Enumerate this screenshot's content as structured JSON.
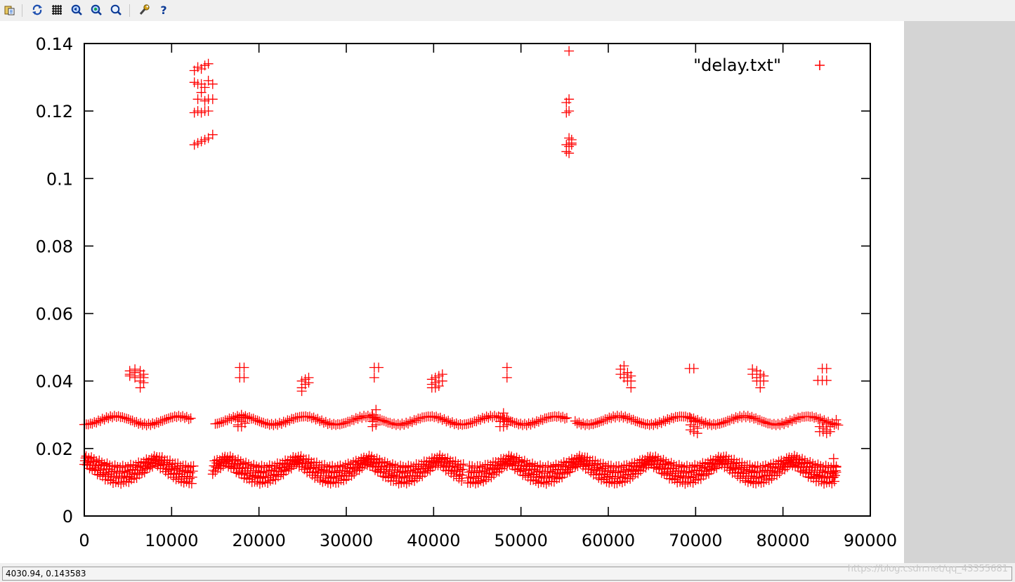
{
  "toolbar": {
    "buttons": [
      {
        "icon": "copy-to-clipboard-icon"
      },
      {
        "icon": "replot-icon"
      },
      {
        "icon": "grid-icon"
      },
      {
        "icon": "zoom-previous-icon"
      },
      {
        "icon": "zoom-next-icon"
      },
      {
        "icon": "unzoom-icon"
      },
      {
        "icon": "settings-wrench-icon"
      },
      {
        "icon": "help-icon"
      }
    ]
  },
  "status": {
    "readout": "4030.94,  0.143583",
    "watermark": "https://blog.csdn.net/qq_43355681"
  },
  "colors": {
    "series": "#ff0000",
    "axis": "#000000",
    "panel": "#d4d4d4"
  },
  "chart_data": {
    "type": "scatter",
    "title": "",
    "xlabel": "",
    "ylabel": "",
    "xlim": [
      0,
      90000
    ],
    "ylim": [
      0,
      0.14
    ],
    "xticks": [
      0,
      10000,
      20000,
      30000,
      40000,
      50000,
      60000,
      70000,
      80000,
      90000
    ],
    "xtick_labels": [
      "0",
      "10000",
      "20000",
      "30000",
      "40000",
      "50000",
      "60000",
      "70000",
      "80000",
      "90000"
    ],
    "yticks": [
      0,
      0.02,
      0.04,
      0.06,
      0.08,
      0.1,
      0.12,
      0.14
    ],
    "ytick_labels": [
      "0",
      "0.02",
      "0.04",
      "0.06",
      "0.08",
      "0.1",
      "0.12",
      "0.14"
    ],
    "grid": false,
    "legend_position": "top-right",
    "marker": "+",
    "series": [
      {
        "name": "\"delay.txt\"",
        "band_028": {
          "x_segments": [
            [
              0,
              12300
            ],
            [
              15000,
              55400
            ],
            [
              56200,
              86400
            ]
          ],
          "center": 0.0283,
          "amplitude": 0.0012,
          "period": 7200,
          "step": 230
        },
        "band_012": {
          "segments": [
            [
              0,
              12300
            ],
            [
              14700,
              43200
            ],
            [
              43900,
              86100
            ]
          ],
          "period": 8100,
          "step": 300,
          "lines": 4
        },
        "clusters_004": [
          {
            "x": 5200,
            "y": [
              0.042,
              0.043,
              0.0415
            ]
          },
          {
            "x": 5800,
            "y": [
              0.0425,
              0.041,
              0.0435
            ]
          },
          {
            "x": 6400,
            "y": [
              0.04,
              0.0415,
              0.043,
              0.038
            ]
          },
          {
            "x": 6800,
            "y": [
              0.041,
              0.0395,
              0.042
            ]
          },
          {
            "x": 17800,
            "y": [
              0.044,
              0.041
            ]
          },
          {
            "x": 18300,
            "y": [
              0.044,
              0.041
            ]
          },
          {
            "x": 24900,
            "y": [
              0.04,
              0.038,
              0.037
            ]
          },
          {
            "x": 25300,
            "y": [
              0.0405,
              0.039
            ]
          },
          {
            "x": 25700,
            "y": [
              0.041,
              0.0395
            ]
          },
          {
            "x": 33200,
            "y": [
              0.044,
              0.041
            ]
          },
          {
            "x": 33700,
            "y": [
              0.044
            ]
          },
          {
            "x": 39800,
            "y": [
              0.0405,
              0.039,
              0.038
            ]
          },
          {
            "x": 40200,
            "y": [
              0.041,
              0.0395,
              0.038
            ]
          },
          {
            "x": 40600,
            "y": [
              0.0415,
              0.04,
              0.0385
            ]
          },
          {
            "x": 41000,
            "y": [
              0.042,
              0.04
            ]
          },
          {
            "x": 48400,
            "y": [
              0.044,
              0.041
            ]
          },
          {
            "x": 61400,
            "y": [
              0.0435,
              0.042
            ]
          },
          {
            "x": 61800,
            "y": [
              0.0445,
              0.042,
              0.041
            ]
          },
          {
            "x": 62200,
            "y": [
              0.0425,
              0.041,
              0.04
            ]
          },
          {
            "x": 62600,
            "y": [
              0.0415,
              0.04,
              0.038
            ]
          },
          {
            "x": 69300,
            "y": [
              0.0437
            ]
          },
          {
            "x": 69800,
            "y": [
              0.0437
            ]
          },
          {
            "x": 76500,
            "y": [
              0.0435,
              0.042
            ]
          },
          {
            "x": 77000,
            "y": [
              0.043,
              0.041,
              0.04
            ]
          },
          {
            "x": 77400,
            "y": [
              0.042,
              0.04,
              0.038
            ]
          },
          {
            "x": 77800,
            "y": [
              0.0415,
              0.04
            ]
          },
          {
            "x": 84000,
            "y": [
              0.0402
            ]
          },
          {
            "x": 84500,
            "y": [
              0.0437,
              0.0402
            ]
          },
          {
            "x": 85000,
            "y": [
              0.0437,
              0.0402
            ]
          }
        ],
        "dips_025": [
          {
            "x": 17600,
            "y": [
              0.027,
              0.0265,
              0.0285
            ]
          },
          {
            "x": 18000,
            "y": [
              0.0265,
              0.028,
              0.03
            ]
          },
          {
            "x": 18400,
            "y": [
              0.0275,
              0.029
            ]
          },
          {
            "x": 33000,
            "y": [
              0.0265,
              0.028,
              0.03
            ]
          },
          {
            "x": 33400,
            "y": [
              0.027,
              0.0285,
              0.0315
            ]
          },
          {
            "x": 47600,
            "y": [
              0.0265,
              0.028
            ]
          },
          {
            "x": 48000,
            "y": [
              0.0265,
              0.028,
              0.0305
            ]
          },
          {
            "x": 48400,
            "y": [
              0.027,
              0.029
            ]
          },
          {
            "x": 69400,
            "y": [
              0.0255,
              0.027,
              0.029
            ]
          },
          {
            "x": 69800,
            "y": [
              0.025,
              0.0265,
              0.028
            ]
          },
          {
            "x": 70200,
            "y": [
              0.0245,
              0.026
            ]
          },
          {
            "x": 84200,
            "y": [
              0.0265,
              0.025
            ]
          },
          {
            "x": 84600,
            "y": [
              0.026,
              0.025
            ]
          },
          {
            "x": 85000,
            "y": [
              0.0255,
              0.0245
            ]
          },
          {
            "x": 85400,
            "y": [
              0.025,
              0.0265
            ]
          }
        ],
        "high_cluster_1": [
          {
            "x": 12600,
            "y": [
              0.11,
              0.1195,
              0.1285,
              0.132
            ]
          },
          {
            "x": 13000,
            "y": [
              0.1105,
              0.12,
              0.1235,
              0.128,
              0.133
            ]
          },
          {
            "x": 13400,
            "y": [
              0.111,
              0.1195,
              0.1255,
              0.128,
              0.1325
            ]
          },
          {
            "x": 13800,
            "y": [
              0.1115,
              0.12,
              0.123,
              0.127,
              0.1335
            ]
          },
          {
            "x": 14200,
            "y": [
              0.112,
              0.12,
              0.1235,
              0.129,
              0.134
            ]
          },
          {
            "x": 14700,
            "y": [
              0.113,
              0.1235,
              0.128
            ]
          }
        ],
        "high_cluster_2": [
          {
            "x": 55200,
            "y": [
              0.108,
              0.11,
              0.1225,
              0.1195
            ]
          },
          {
            "x": 55500,
            "y": [
              0.1075,
              0.1095,
              0.112,
              0.1235,
              0.12,
              0.1378
            ]
          },
          {
            "x": 55800,
            "y": [
              0.11,
              0.1115,
              0.1105
            ]
          }
        ],
        "end_points": [
          {
            "x": 85800,
            "y": [
              0.0125,
              0.015,
              0.017,
              0.0115
            ]
          },
          {
            "x": 86100,
            "y": [
              0.013,
              0.0145,
              0.0285
            ]
          }
        ]
      }
    ]
  }
}
